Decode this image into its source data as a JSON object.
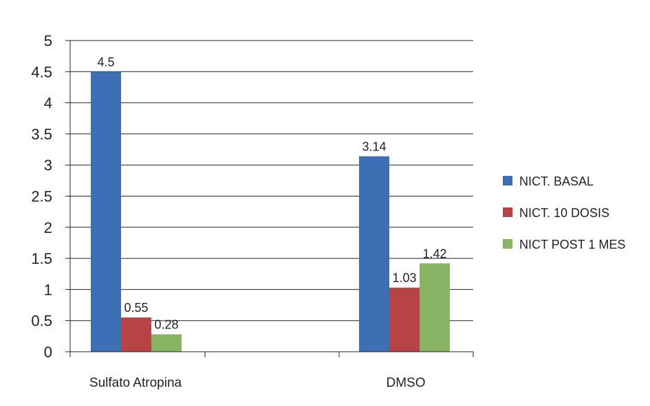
{
  "chart_data": {
    "type": "bar",
    "categories": [
      "Sulfato Atropina",
      "DMSO"
    ],
    "series": [
      {
        "name": "NICT. BASAL",
        "values": [
          4.5,
          3.14
        ],
        "labels": [
          "4.5",
          "3.14"
        ],
        "color": "#3d6fb5"
      },
      {
        "name": "NICT. 10 DOSIS",
        "values": [
          0.55,
          1.03
        ],
        "labels": [
          "0.55",
          "1.03"
        ],
        "color": "#b84346"
      },
      {
        "name": "NICT POST 1 MES",
        "values": [
          0.28,
          1.42
        ],
        "labels": [
          "0.28",
          "1.42"
        ],
        "color": "#88b463"
      }
    ],
    "ylim": [
      0,
      5
    ],
    "yticks": [
      "0",
      "0.5",
      "1",
      "1.5",
      "2",
      "2.5",
      "3",
      "3.5",
      "4",
      "4.5",
      "5"
    ],
    "grid": true,
    "legend": "right",
    "title": "",
    "xlabel": "",
    "ylabel": ""
  }
}
